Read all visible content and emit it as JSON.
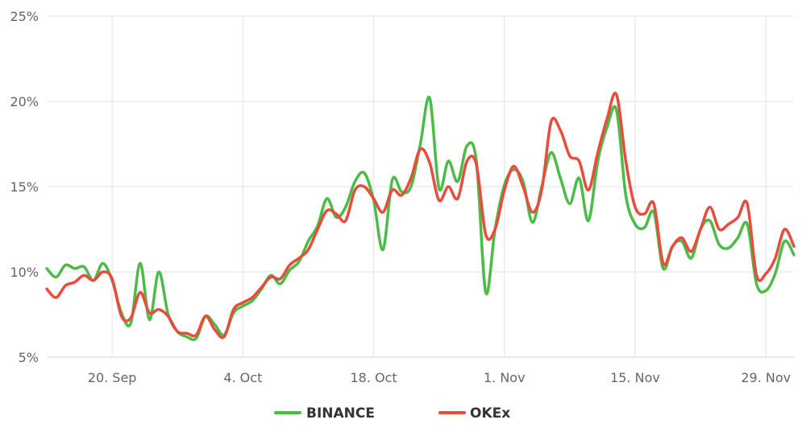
{
  "chart_data": {
    "type": "line",
    "title": "",
    "xlabel": "",
    "ylabel": "",
    "x_start": "2021-09-13",
    "x_end": "2021-12-02",
    "ylim": [
      5,
      25
    ],
    "y_ticks": [
      {
        "value": 5,
        "label": "5%"
      },
      {
        "value": 10,
        "label": "10%"
      },
      {
        "value": 15,
        "label": "15%"
      },
      {
        "value": 20,
        "label": "20%"
      },
      {
        "value": 25,
        "label": "25%"
      }
    ],
    "x_ticks": [
      {
        "date": "2021-09-20",
        "label": "20. Sep"
      },
      {
        "date": "2021-10-04",
        "label": "4. Oct"
      },
      {
        "date": "2021-10-18",
        "label": "18. Oct"
      },
      {
        "date": "2021-11-01",
        "label": "1. Nov"
      },
      {
        "date": "2021-11-15",
        "label": "15. Nov"
      },
      {
        "date": "2021-11-29",
        "label": "29. Nov"
      }
    ],
    "grid": {
      "horizontal": true,
      "vertical": true
    },
    "legend_position": "bottom-center",
    "series": [
      {
        "name": "BINANCE",
        "color": "#4cbb47",
        "points": [
          [
            "2021-09-13",
            10.2
          ],
          [
            "2021-09-14",
            9.7
          ],
          [
            "2021-09-15",
            10.4
          ],
          [
            "2021-09-16",
            10.2
          ],
          [
            "2021-09-17",
            10.3
          ],
          [
            "2021-09-18",
            9.5
          ],
          [
            "2021-09-19",
            10.5
          ],
          [
            "2021-09-20",
            9.5
          ],
          [
            "2021-09-21",
            7.6
          ],
          [
            "2021-09-22",
            7.0
          ],
          [
            "2021-09-23",
            10.5
          ],
          [
            "2021-09-24",
            7.2
          ],
          [
            "2021-09-25",
            10.0
          ],
          [
            "2021-09-26",
            7.5
          ],
          [
            "2021-09-27",
            6.5
          ],
          [
            "2021-09-28",
            6.2
          ],
          [
            "2021-09-29",
            6.1
          ],
          [
            "2021-09-30",
            7.4
          ],
          [
            "2021-10-01",
            6.9
          ],
          [
            "2021-10-02",
            6.3
          ],
          [
            "2021-10-03",
            7.6
          ],
          [
            "2021-10-04",
            8.0
          ],
          [
            "2021-10-05",
            8.3
          ],
          [
            "2021-10-06",
            9.0
          ],
          [
            "2021-10-07",
            9.8
          ],
          [
            "2021-10-08",
            9.3
          ],
          [
            "2021-10-09",
            10.1
          ],
          [
            "2021-10-10",
            10.6
          ],
          [
            "2021-10-11",
            11.8
          ],
          [
            "2021-10-12",
            12.7
          ],
          [
            "2021-10-13",
            14.3
          ],
          [
            "2021-10-14",
            13.2
          ],
          [
            "2021-10-15",
            13.8
          ],
          [
            "2021-10-16",
            15.3
          ],
          [
            "2021-10-17",
            15.8
          ],
          [
            "2021-10-18",
            14.2
          ],
          [
            "2021-10-19",
            11.3
          ],
          [
            "2021-10-20",
            15.4
          ],
          [
            "2021-10-21",
            14.7
          ],
          [
            "2021-10-22",
            15.0
          ],
          [
            "2021-10-23",
            17.5
          ],
          [
            "2021-10-24",
            20.2
          ],
          [
            "2021-10-25",
            14.9
          ],
          [
            "2021-10-26",
            16.5
          ],
          [
            "2021-10-27",
            15.3
          ],
          [
            "2021-10-28",
            17.4
          ],
          [
            "2021-10-29",
            16.5
          ],
          [
            "2021-10-30",
            8.8
          ],
          [
            "2021-10-31",
            12.5
          ],
          [
            "2021-11-01",
            15.1
          ],
          [
            "2021-11-02",
            16.0
          ],
          [
            "2021-11-03",
            15.3
          ],
          [
            "2021-11-04",
            12.9
          ],
          [
            "2021-11-05",
            15.0
          ],
          [
            "2021-11-06",
            17.0
          ],
          [
            "2021-11-07",
            15.5
          ],
          [
            "2021-11-08",
            14.0
          ],
          [
            "2021-11-09",
            15.5
          ],
          [
            "2021-11-10",
            13.0
          ],
          [
            "2021-11-11",
            16.5
          ],
          [
            "2021-11-12",
            18.5
          ],
          [
            "2021-11-13",
            19.5
          ],
          [
            "2021-11-14",
            14.5
          ],
          [
            "2021-11-15",
            12.8
          ],
          [
            "2021-11-16",
            12.6
          ],
          [
            "2021-11-17",
            13.5
          ],
          [
            "2021-11-18",
            10.2
          ],
          [
            "2021-11-19",
            11.5
          ],
          [
            "2021-11-20",
            11.8
          ],
          [
            "2021-11-21",
            10.8
          ],
          [
            "2021-11-22",
            12.5
          ],
          [
            "2021-11-23",
            13.0
          ],
          [
            "2021-11-24",
            11.6
          ],
          [
            "2021-11-25",
            11.4
          ],
          [
            "2021-11-26",
            12.0
          ],
          [
            "2021-11-27",
            12.8
          ],
          [
            "2021-11-28",
            9.3
          ],
          [
            "2021-11-29",
            8.9
          ],
          [
            "2021-11-30",
            9.9
          ],
          [
            "2021-12-01",
            11.8
          ],
          [
            "2021-12-02",
            11.0
          ]
        ]
      },
      {
        "name": "OKEx",
        "color": "#e84c3d",
        "points": [
          [
            "2021-09-13",
            9.0
          ],
          [
            "2021-09-14",
            8.5
          ],
          [
            "2021-09-15",
            9.2
          ],
          [
            "2021-09-16",
            9.4
          ],
          [
            "2021-09-17",
            9.8
          ],
          [
            "2021-09-18",
            9.5
          ],
          [
            "2021-09-19",
            10.0
          ],
          [
            "2021-09-20",
            9.6
          ],
          [
            "2021-09-21",
            7.4
          ],
          [
            "2021-09-22",
            7.3
          ],
          [
            "2021-09-23",
            8.8
          ],
          [
            "2021-09-24",
            7.6
          ],
          [
            "2021-09-25",
            7.8
          ],
          [
            "2021-09-26",
            7.4
          ],
          [
            "2021-09-27",
            6.5
          ],
          [
            "2021-09-28",
            6.4
          ],
          [
            "2021-09-29",
            6.3
          ],
          [
            "2021-09-30",
            7.4
          ],
          [
            "2021-10-01",
            6.6
          ],
          [
            "2021-10-02",
            6.2
          ],
          [
            "2021-10-03",
            7.8
          ],
          [
            "2021-10-04",
            8.2
          ],
          [
            "2021-10-05",
            8.5
          ],
          [
            "2021-10-06",
            9.1
          ],
          [
            "2021-10-07",
            9.7
          ],
          [
            "2021-10-08",
            9.6
          ],
          [
            "2021-10-09",
            10.4
          ],
          [
            "2021-10-10",
            10.8
          ],
          [
            "2021-10-11",
            11.3
          ],
          [
            "2021-10-12",
            12.5
          ],
          [
            "2021-10-13",
            13.6
          ],
          [
            "2021-10-14",
            13.4
          ],
          [
            "2021-10-15",
            13.0
          ],
          [
            "2021-10-16",
            14.8
          ],
          [
            "2021-10-17",
            15.0
          ],
          [
            "2021-10-18",
            14.3
          ],
          [
            "2021-10-19",
            13.5
          ],
          [
            "2021-10-20",
            14.8
          ],
          [
            "2021-10-21",
            14.5
          ],
          [
            "2021-10-22",
            15.5
          ],
          [
            "2021-10-23",
            17.2
          ],
          [
            "2021-10-24",
            16.4
          ],
          [
            "2021-10-25",
            14.2
          ],
          [
            "2021-10-26",
            15.0
          ],
          [
            "2021-10-27",
            14.3
          ],
          [
            "2021-10-28",
            16.5
          ],
          [
            "2021-10-29",
            16.3
          ],
          [
            "2021-10-30",
            12.2
          ],
          [
            "2021-10-31",
            12.5
          ],
          [
            "2021-11-01",
            14.8
          ],
          [
            "2021-11-02",
            16.2
          ],
          [
            "2021-11-03",
            15.0
          ],
          [
            "2021-11-04",
            13.5
          ],
          [
            "2021-11-05",
            14.8
          ],
          [
            "2021-11-06",
            18.8
          ],
          [
            "2021-11-07",
            18.3
          ],
          [
            "2021-11-08",
            16.8
          ],
          [
            "2021-11-09",
            16.5
          ],
          [
            "2021-11-10",
            14.8
          ],
          [
            "2021-11-11",
            17.0
          ],
          [
            "2021-11-12",
            19.0
          ],
          [
            "2021-11-13",
            20.4
          ],
          [
            "2021-11-14",
            16.5
          ],
          [
            "2021-11-15",
            13.8
          ],
          [
            "2021-11-16",
            13.4
          ],
          [
            "2021-11-17",
            14.0
          ],
          [
            "2021-11-18",
            10.5
          ],
          [
            "2021-11-19",
            11.5
          ],
          [
            "2021-11-20",
            12.0
          ],
          [
            "2021-11-21",
            11.2
          ],
          [
            "2021-11-22",
            12.5
          ],
          [
            "2021-11-23",
            13.8
          ],
          [
            "2021-11-24",
            12.5
          ],
          [
            "2021-11-25",
            12.8
          ],
          [
            "2021-11-26",
            13.2
          ],
          [
            "2021-11-27",
            14.0
          ],
          [
            "2021-11-28",
            9.8
          ],
          [
            "2021-11-29",
            9.9
          ],
          [
            "2021-11-30",
            10.8
          ],
          [
            "2021-12-01",
            12.5
          ],
          [
            "2021-12-02",
            11.5
          ]
        ]
      }
    ]
  }
}
